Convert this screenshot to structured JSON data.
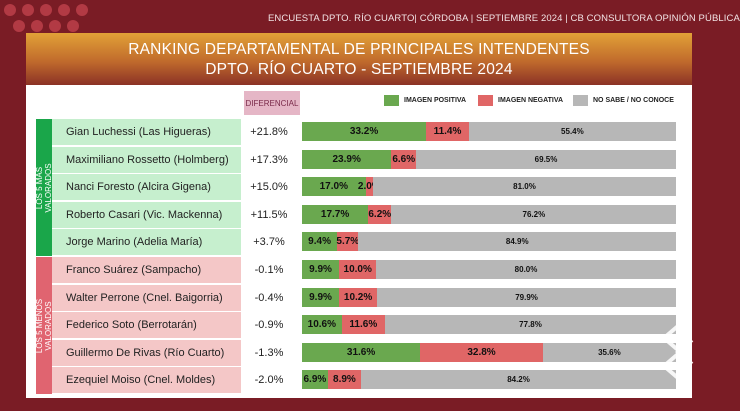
{
  "header": {
    "line": "ENCUESTA DPTO. RÍO CUARTO|  CÓRDOBA  | SEPTIEMBRE  2024 | CB CONSULTORA OPINIÓN PÚBLICA"
  },
  "colors": {
    "positive": "#6aa84f",
    "negative": "#e06666",
    "unknown": "#b7b7b7",
    "top_group": "#1aa64a",
    "top_row": "#c6efce",
    "bottom_group": "#e06470",
    "bottom_row": "#f4c7c7",
    "background": "#7a1c25"
  },
  "chart_data": {
    "type": "bar",
    "stacked": true,
    "horizontal": true,
    "title": "RANKING DEPARTAMENTAL DE PRINCIPALES INTENDENTES",
    "subtitle": "DPTO. RÍO CUARTO - SEPTIEMBRE 2024",
    "column_header": "DIFERENCIAL",
    "legend_position": "top-right",
    "groups": [
      {
        "label_line1": "LOS 5 MÁS",
        "label_line2": "VALORADOS",
        "rows": [
          0,
          1,
          2,
          3,
          4
        ]
      },
      {
        "label_line1": "LOS 5 MENOS",
        "label_line2": "VALORADOS",
        "rows": [
          5,
          6,
          7,
          8,
          9
        ]
      }
    ],
    "categories": [
      "Gian Luchessi (Las Higueras)",
      "Maximiliano Rossetto (Holmberg)",
      "Nanci Foresto (Alcira Gigena)",
      "Roberto Casari (Vic. Mackenna)",
      "Jorge Marino (Adelia María)",
      "Franco Suárez (Sampacho)",
      "Walter Perrone (Cnel. Baigorria)",
      "Federico Soto (Berrotarán)",
      "Guillermo De Rivas (Río Cuarto)",
      "Ezequiel Moiso (Cnel. Moldes)"
    ],
    "diferencial": [
      "+21.8%",
      "+17.3%",
      "+15.0%",
      "+11.5%",
      "+3.7%",
      "-0.1%",
      "-0.4%",
      "-0.9%",
      "-1.3%",
      "-2.0%"
    ],
    "series": [
      {
        "name": "IMAGEN POSITIVA",
        "values": [
          33.2,
          23.9,
          17.0,
          17.7,
          9.4,
          9.9,
          9.9,
          10.6,
          31.6,
          6.9
        ]
      },
      {
        "name": "IMAGEN NEGATIVA",
        "values": [
          11.4,
          6.6,
          2.0,
          6.2,
          5.7,
          10.0,
          10.2,
          11.6,
          32.8,
          8.9
        ]
      },
      {
        "name": "NO SABE / NO CONOCE",
        "values": [
          55.4,
          69.5,
          81.0,
          76.2,
          84.9,
          80.0,
          79.9,
          77.8,
          35.6,
          84.2
        ]
      }
    ],
    "xlim": [
      0,
      100
    ]
  }
}
